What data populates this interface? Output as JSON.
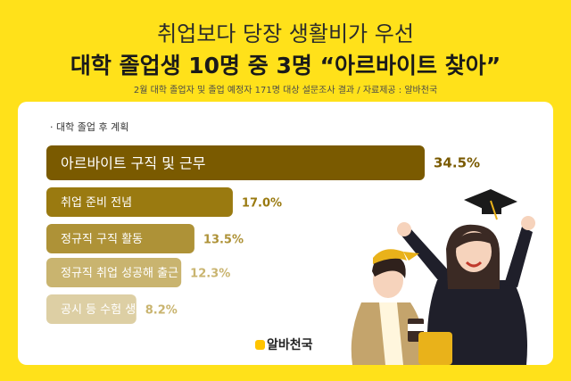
{
  "header": {
    "title_line1": "취업보다 당장 생활비가 우선",
    "title_line2": "대학 졸업생 10명 중 3명 “아르바이트 찾아”",
    "subtitle": "2월 대학 졸업자 및 졸업 예정자 171명 대상 설문조사 결과 / 자료제공 : 알바천국"
  },
  "colors": {
    "background": "#FFE11A",
    "bars": [
      "#7A5A00",
      "#9A7A10",
      "#AE9237",
      "#C9B46F",
      "#DDCFA4"
    ],
    "value_text": [
      "#7A5A00",
      "#9A7A10",
      "#AE9237",
      "#C9B46F",
      "#C9B46F"
    ]
  },
  "chart_data": {
    "type": "bar",
    "orientation": "horizontal",
    "title": "· 대학 졸업 후 계획",
    "categories": [
      "아르바이트 구직 및 근무",
      "취업 준비 전념",
      "정규직 구직 활동",
      "정규직 취업 성공해 출근 중(예정)",
      "공시 등 수험 생활"
    ],
    "values": [
      34.5,
      17.0,
      13.5,
      12.3,
      8.2
    ],
    "value_labels": [
      "34.5%",
      "17.0%",
      "13.5%",
      "12.3%",
      "8.2%"
    ],
    "grid": false,
    "legend": "none"
  },
  "logo": {
    "text": "알바천국"
  }
}
